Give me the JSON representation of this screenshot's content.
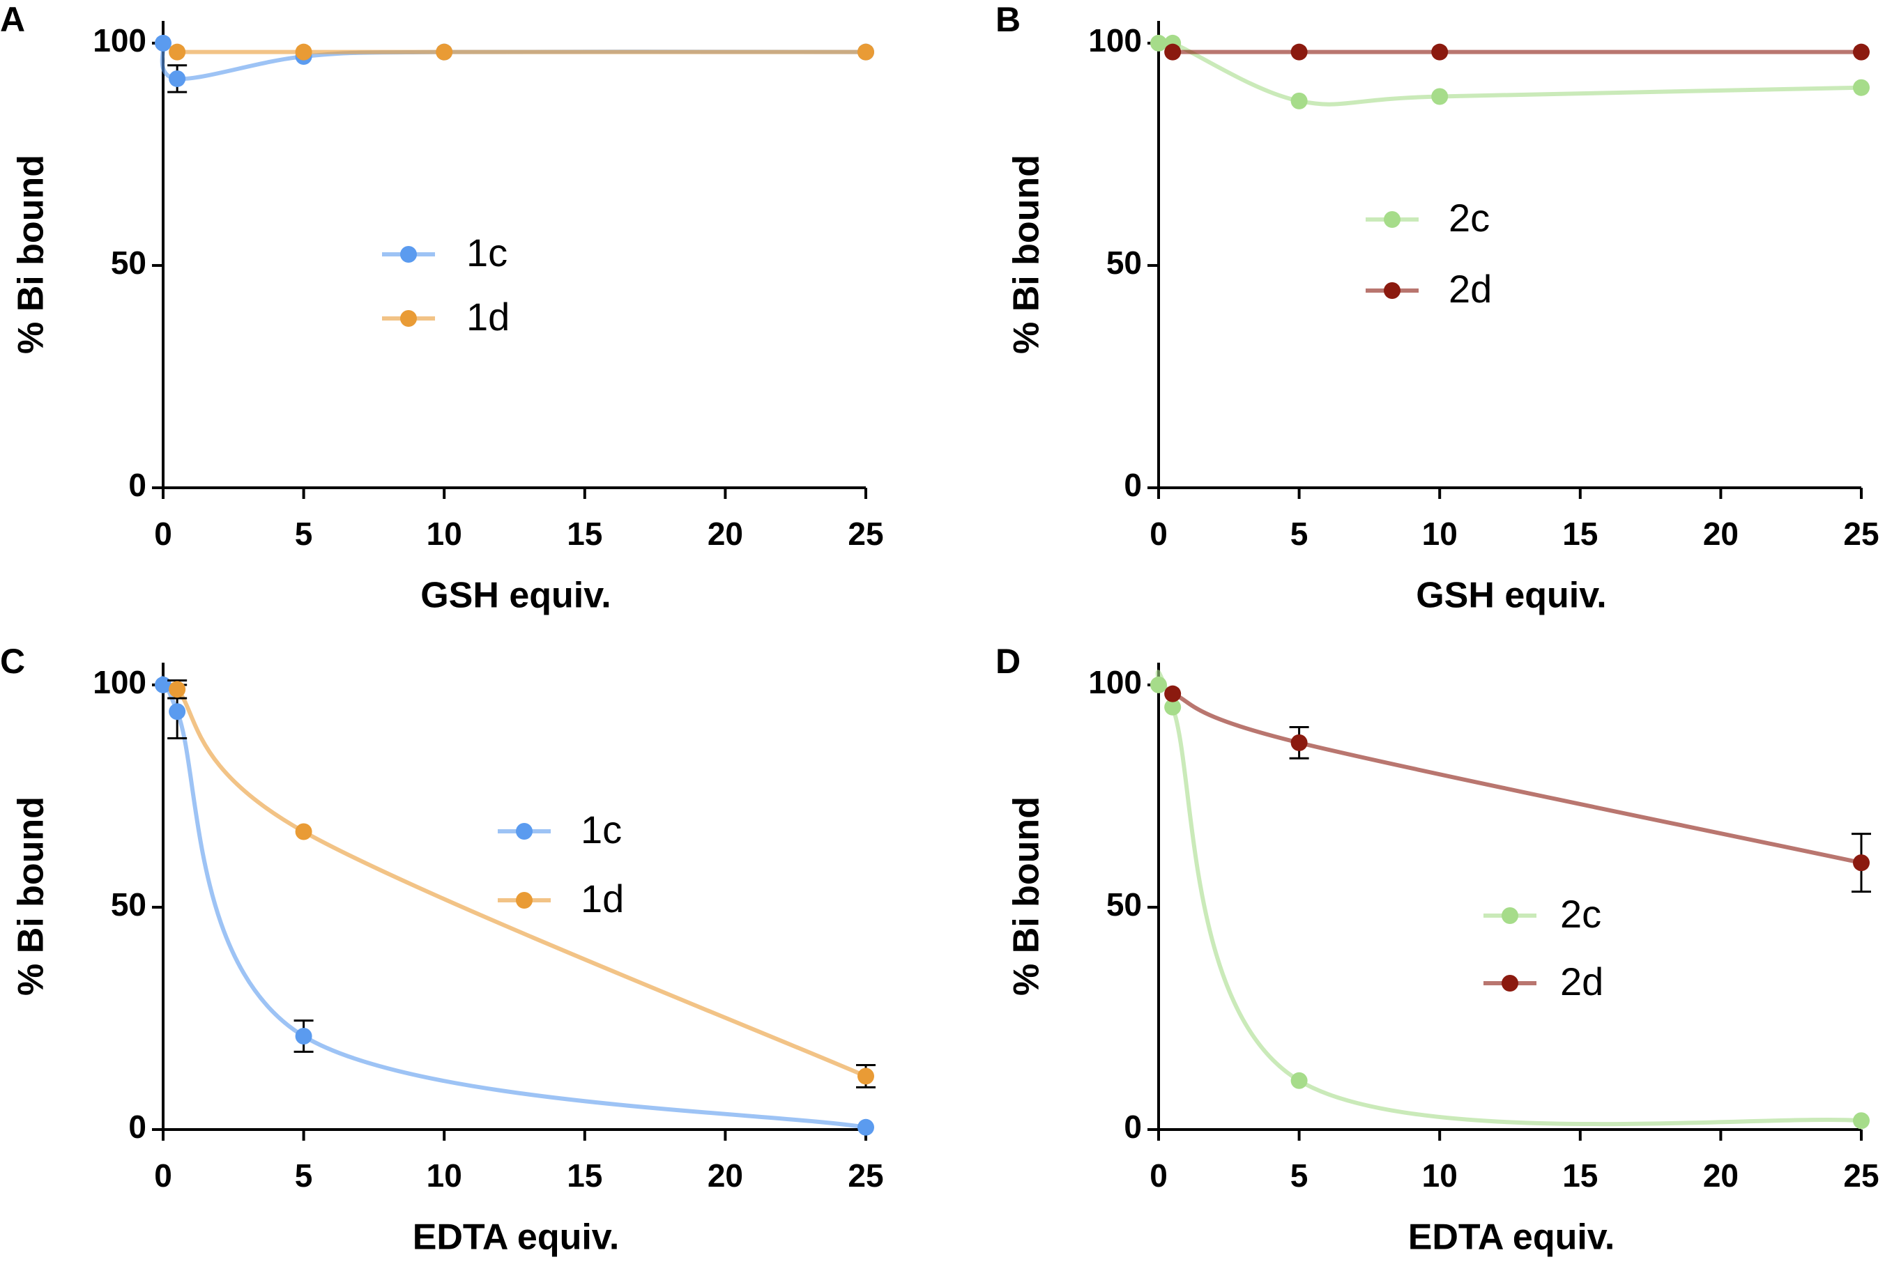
{
  "chart_data": [
    {
      "type": "scatter",
      "panel": "A",
      "xlabel": "GSH equiv.",
      "ylabel": "% Bi bound",
      "xlim": [
        0,
        25
      ],
      "xticks": [
        0,
        5,
        10,
        15,
        20,
        25
      ],
      "ylim": [
        0,
        105
      ],
      "yticks": [
        0,
        50,
        100
      ],
      "series": [
        {
          "name": "1c",
          "color": "#5b9bef",
          "x": [
            0,
            0.5,
            5,
            10,
            25
          ],
          "values": [
            100,
            92,
            97,
            98,
            98
          ],
          "errors": [
            null,
            3,
            null,
            null,
            null
          ]
        },
        {
          "name": "1d",
          "color": "#e99b35",
          "x": [
            0.5,
            5,
            10,
            25
          ],
          "values": [
            98,
            98,
            98,
            98
          ],
          "errors": [
            null,
            null,
            null,
            null
          ]
        }
      ]
    },
    {
      "type": "scatter",
      "panel": "B",
      "xlabel": "GSH equiv.",
      "ylabel": "% Bi bound",
      "xlim": [
        0,
        25
      ],
      "xticks": [
        0,
        5,
        10,
        15,
        20,
        25
      ],
      "ylim": [
        0,
        105
      ],
      "yticks": [
        0,
        50,
        100
      ],
      "series": [
        {
          "name": "2c",
          "color": "#a6dc8a",
          "x": [
            0,
            0.5,
            5,
            10,
            25
          ],
          "values": [
            100,
            100,
            87,
            88,
            90
          ],
          "errors": [
            null,
            null,
            null,
            null,
            null
          ]
        },
        {
          "name": "2d",
          "color": "#8b1a0f",
          "x": [
            0.5,
            5,
            10,
            25
          ],
          "values": [
            98,
            98,
            98,
            98
          ],
          "errors": [
            null,
            null,
            null,
            null
          ]
        }
      ]
    },
    {
      "type": "scatter",
      "panel": "C",
      "xlabel": "EDTA equiv.",
      "ylabel": "% Bi bound",
      "xlim": [
        0,
        25
      ],
      "xticks": [
        0,
        5,
        10,
        15,
        20,
        25
      ],
      "ylim": [
        0,
        105
      ],
      "yticks": [
        0,
        50,
        100
      ],
      "series": [
        {
          "name": "1c",
          "color": "#5b9bef",
          "x": [
            0,
            0.5,
            5,
            25
          ],
          "values": [
            100,
            94,
            21,
            0.5
          ],
          "errors": [
            null,
            6,
            3.5,
            null
          ]
        },
        {
          "name": "1d",
          "color": "#e99b35",
          "x": [
            0.5,
            5,
            25
          ],
          "values": [
            99,
            67,
            12
          ],
          "errors": [
            2,
            null,
            2.5
          ]
        }
      ]
    },
    {
      "type": "scatter",
      "panel": "D",
      "xlabel": "EDTA equiv.",
      "ylabel": "% Bi bound",
      "xlim": [
        0,
        25
      ],
      "xticks": [
        0,
        5,
        10,
        15,
        20,
        25
      ],
      "ylim": [
        0,
        105
      ],
      "yticks": [
        0,
        50,
        100
      ],
      "series": [
        {
          "name": "2c",
          "color": "#a6dc8a",
          "x": [
            0,
            0.5,
            5,
            25
          ],
          "values": [
            100,
            95,
            11,
            2
          ],
          "errors": [
            null,
            null,
            null,
            null
          ]
        },
        {
          "name": "2d",
          "color": "#8b1a0f",
          "x": [
            0.5,
            5,
            25
          ],
          "values": [
            98,
            87,
            60
          ],
          "errors": [
            null,
            3.5,
            6.5
          ]
        }
      ]
    }
  ]
}
